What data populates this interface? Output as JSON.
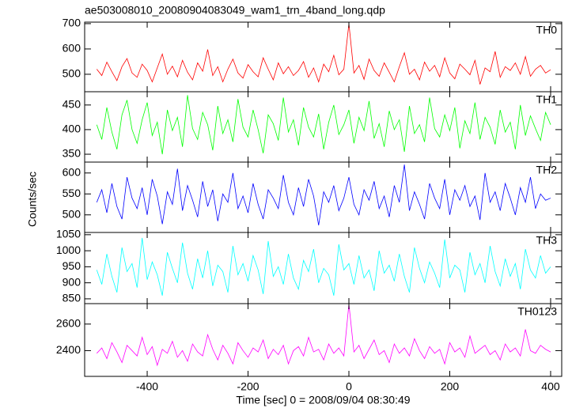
{
  "chart_data": [
    {
      "type": "line",
      "title": "ae503008010_20080904083049_wam1_trn_4band_long.qdp",
      "label": "TH0",
      "color": "#ff0000",
      "xlim": [
        -524,
        422
      ],
      "xticks": [
        -400,
        -200,
        0,
        200,
        400
      ],
      "ylim": [
        431,
        706
      ],
      "yticks": [
        500,
        600,
        700
      ],
      "x": [
        -500,
        -490,
        -480,
        -470,
        -460,
        -450,
        -440,
        -430,
        -420,
        -410,
        -400,
        -390,
        -380,
        -370,
        -360,
        -350,
        -340,
        -330,
        -320,
        -310,
        -300,
        -290,
        -280,
        -270,
        -260,
        -250,
        -240,
        -230,
        -220,
        -210,
        -200,
        -190,
        -180,
        -170,
        -160,
        -150,
        -140,
        -130,
        -120,
        -110,
        -100,
        -90,
        -80,
        -70,
        -60,
        -50,
        -40,
        -30,
        -20,
        -10,
        0,
        10,
        20,
        30,
        40,
        50,
        60,
        70,
        80,
        90,
        100,
        110,
        120,
        130,
        140,
        150,
        160,
        170,
        180,
        190,
        200,
        210,
        220,
        230,
        240,
        250,
        260,
        270,
        280,
        290,
        300,
        310,
        320,
        330,
        340,
        350,
        360,
        370,
        380,
        390,
        400
      ],
      "values": [
        520,
        495,
        548,
        510,
        475,
        530,
        562,
        505,
        488,
        540,
        515,
        470,
        525,
        580,
        500,
        532,
        490,
        555,
        508,
        478,
        545,
        512,
        598,
        495,
        530,
        470,
        520,
        560,
        505,
        485,
        538,
        510,
        490,
        565,
        520,
        478,
        545,
        502,
        530,
        495,
        515,
        550,
        488,
        525,
        470,
        540,
        510,
        575,
        498,
        520,
        700,
        505,
        535,
        480,
        560,
        515,
        492,
        545,
        508,
        470,
        530,
        585,
        500,
        520,
        478,
        548,
        512,
        535,
        490,
        565,
        505,
        482,
        540,
        520,
        498,
        555,
        460,
        525,
        510,
        590,
        488,
        530,
        515,
        545,
        500,
        570,
        492,
        520,
        535,
        505,
        518
      ]
    },
    {
      "type": "line",
      "label": "TH1",
      "color": "#00ff00",
      "xlim": [
        -524,
        422
      ],
      "xticks": [
        -400,
        -200,
        0,
        200,
        400
      ],
      "ylim": [
        334,
        477
      ],
      "yticks": [
        350,
        400,
        450
      ],
      "x": [
        -500,
        -490,
        -480,
        -470,
        -460,
        -450,
        -440,
        -430,
        -420,
        -410,
        -400,
        -390,
        -380,
        -370,
        -360,
        -350,
        -340,
        -330,
        -320,
        -310,
        -300,
        -290,
        -280,
        -270,
        -260,
        -250,
        -240,
        -230,
        -220,
        -210,
        -200,
        -190,
        -180,
        -170,
        -160,
        -150,
        -140,
        -130,
        -120,
        -110,
        -100,
        -90,
        -80,
        -70,
        -60,
        -50,
        -40,
        -30,
        -20,
        -10,
        0,
        10,
        20,
        30,
        40,
        50,
        60,
        70,
        80,
        90,
        100,
        110,
        120,
        130,
        140,
        150,
        160,
        170,
        180,
        190,
        200,
        210,
        220,
        230,
        240,
        250,
        260,
        270,
        280,
        290,
        300,
        310,
        320,
        330,
        340,
        350,
        360,
        370,
        380,
        390,
        400
      ],
      "values": [
        410,
        380,
        445,
        395,
        360,
        430,
        460,
        400,
        372,
        420,
        455,
        388,
        415,
        350,
        440,
        398,
        425,
        365,
        470,
        402,
        380,
        435,
        410,
        358,
        448,
        392,
        420,
        375,
        462,
        405,
        385,
        440,
        400,
        352,
        430,
        412,
        378,
        465,
        395,
        420,
        368,
        445,
        405,
        385,
        432,
        360,
        415,
        450,
        390,
        410,
        440,
        372,
        425,
        398,
        458,
        382,
        412,
        365,
        438,
        400,
        420,
        355,
        448,
        392,
        410,
        375,
        465,
        402,
        385,
        430,
        398,
        445,
        362,
        418,
        392,
        455,
        380,
        425,
        405,
        370,
        440,
        395,
        415,
        360,
        450,
        388,
        428,
        402,
        378,
        435,
        410
      ]
    },
    {
      "type": "line",
      "label": "TH2",
      "color": "#0000ff",
      "ylabel": "Counts/sec",
      "xlim": [
        -524,
        422
      ],
      "xticks": [
        -400,
        -200,
        0,
        200,
        400
      ],
      "ylim": [
        458,
        626
      ],
      "yticks": [
        500,
        550,
        600
      ],
      "x": [
        -500,
        -490,
        -480,
        -470,
        -460,
        -450,
        -440,
        -430,
        -420,
        -410,
        -400,
        -390,
        -380,
        -370,
        -360,
        -350,
        -340,
        -330,
        -320,
        -310,
        -300,
        -290,
        -280,
        -270,
        -260,
        -250,
        -240,
        -230,
        -220,
        -210,
        -200,
        -190,
        -180,
        -170,
        -160,
        -150,
        -140,
        -130,
        -120,
        -110,
        -100,
        -90,
        -80,
        -70,
        -60,
        -50,
        -40,
        -30,
        -20,
        -10,
        0,
        10,
        20,
        30,
        40,
        50,
        60,
        70,
        80,
        90,
        100,
        110,
        120,
        130,
        140,
        150,
        160,
        170,
        180,
        190,
        200,
        210,
        220,
        230,
        240,
        250,
        260,
        270,
        280,
        290,
        300,
        310,
        320,
        330,
        340,
        350,
        360,
        370,
        380,
        390,
        400
      ],
      "values": [
        530,
        560,
        505,
        575,
        520,
        490,
        590,
        540,
        515,
        565,
        500,
        585,
        545,
        478,
        555,
        525,
        610,
        510,
        570,
        535,
        495,
        580,
        520,
        560,
        485,
        550,
        530,
        600,
        515,
        545,
        505,
        575,
        525,
        490,
        560,
        540,
        515,
        595,
        530,
        500,
        565,
        520,
        585,
        545,
        475,
        555,
        530,
        570,
        510,
        540,
        590,
        525,
        500,
        560,
        535,
        580,
        515,
        545,
        495,
        570,
        530,
        620,
        510,
        555,
        525,
        490,
        575,
        540,
        515,
        585,
        500,
        560,
        535,
        570,
        520,
        545,
        488,
        600,
        530,
        555,
        510,
        575,
        540,
        500,
        565,
        530,
        590,
        515,
        550,
        535,
        540
      ]
    },
    {
      "type": "line",
      "label": "TH3",
      "color": "#00ffff",
      "xlim": [
        -524,
        422
      ],
      "xticks": [
        -400,
        -200,
        0,
        200,
        400
      ],
      "ylim": [
        835,
        1057
      ],
      "yticks": [
        850,
        900,
        950,
        1000,
        1050
      ],
      "x": [
        -500,
        -490,
        -480,
        -470,
        -460,
        -450,
        -440,
        -430,
        -420,
        -410,
        -400,
        -390,
        -380,
        -370,
        -360,
        -350,
        -340,
        -330,
        -320,
        -310,
        -300,
        -290,
        -280,
        -270,
        -260,
        -250,
        -240,
        -230,
        -220,
        -210,
        -200,
        -190,
        -180,
        -170,
        -160,
        -150,
        -140,
        -130,
        -120,
        -110,
        -100,
        -90,
        -80,
        -70,
        -60,
        -50,
        -40,
        -30,
        -20,
        -10,
        0,
        10,
        20,
        30,
        40,
        50,
        60,
        70,
        80,
        90,
        100,
        110,
        120,
        130,
        140,
        150,
        160,
        170,
        180,
        190,
        200,
        210,
        220,
        230,
        240,
        250,
        260,
        270,
        280,
        290,
        300,
        310,
        320,
        330,
        340,
        350,
        360,
        370,
        380,
        390,
        400
      ],
      "values": [
        940,
        895,
        990,
        920,
        870,
        1010,
        935,
        960,
        885,
        1040,
        910,
        965,
        925,
        860,
        995,
        945,
        900,
        1025,
        930,
        880,
        975,
        915,
        1000,
        890,
        955,
        935,
        870,
        1015,
        925,
        960,
        905,
        985,
        940,
        865,
        1030,
        920,
        950,
        895,
        990,
        915,
        880,
        970,
        935,
        1005,
        900,
        945,
        925,
        860,
        1020,
        940,
        960,
        895,
        985,
        915,
        940,
        875,
        1000,
        930,
        955,
        905,
        990,
        920,
        870,
        1010,
        945,
        900,
        965,
        930,
        885,
        1035,
        915,
        955,
        940,
        870,
        995,
        925,
        960,
        900,
        1015,
        935,
        890,
        975,
        920,
        960,
        880,
        1005,
        940,
        915,
        985,
        930,
        950
      ]
    },
    {
      "type": "line",
      "label": "TH0123",
      "color": "#ff00ff",
      "xlabel": "Time [sec] 0 = 2008/09/04 08:30:49",
      "xlim": [
        -524,
        422
      ],
      "xticks": [
        -400,
        -200,
        0,
        200,
        400
      ],
      "ylim": [
        2206,
        2754
      ],
      "yticks": [
        2400,
        2600
      ],
      "x": [
        -500,
        -490,
        -480,
        -470,
        -460,
        -450,
        -440,
        -430,
        -420,
        -410,
        -400,
        -390,
        -380,
        -370,
        -360,
        -350,
        -340,
        -330,
        -320,
        -310,
        -300,
        -290,
        -280,
        -270,
        -260,
        -250,
        -240,
        -230,
        -220,
        -210,
        -200,
        -190,
        -180,
        -170,
        -160,
        -150,
        -140,
        -130,
        -120,
        -110,
        -100,
        -90,
        -80,
        -70,
        -60,
        -50,
        -40,
        -30,
        -20,
        -10,
        0,
        10,
        20,
        30,
        40,
        50,
        60,
        70,
        80,
        90,
        100,
        110,
        120,
        130,
        140,
        150,
        160,
        170,
        180,
        190,
        200,
        210,
        220,
        230,
        240,
        250,
        260,
        270,
        280,
        290,
        300,
        310,
        320,
        330,
        340,
        350,
        360,
        370,
        380,
        390,
        400
      ],
      "values": [
        2380,
        2420,
        2340,
        2460,
        2390,
        2310,
        2440,
        2400,
        2360,
        2500,
        2370,
        2430,
        2290,
        2410,
        2380,
        2470,
        2350,
        2400,
        2320,
        2450,
        2390,
        2360,
        2520,
        2410,
        2330,
        2440,
        2380,
        2300,
        2460,
        2400,
        2350,
        2420,
        2390,
        2480,
        2340,
        2410,
        2370,
        2440,
        2300,
        2400,
        2430,
        2360,
        2500,
        2390,
        2410,
        2330,
        2450,
        2380,
        2420,
        2360,
        2750,
        2390,
        2440,
        2340,
        2410,
        2480,
        2370,
        2400,
        2310,
        2450,
        2380,
        2420,
        2360,
        2490,
        2400,
        2340,
        2430,
        2380,
        2410,
        2300,
        2460,
        2390,
        2420,
        2350,
        2510,
        2380,
        2410,
        2440,
        2370,
        2400,
        2330,
        2450,
        2390,
        2420,
        2360,
        2560,
        2400,
        2380,
        2440,
        2410,
        2390
      ]
    }
  ]
}
